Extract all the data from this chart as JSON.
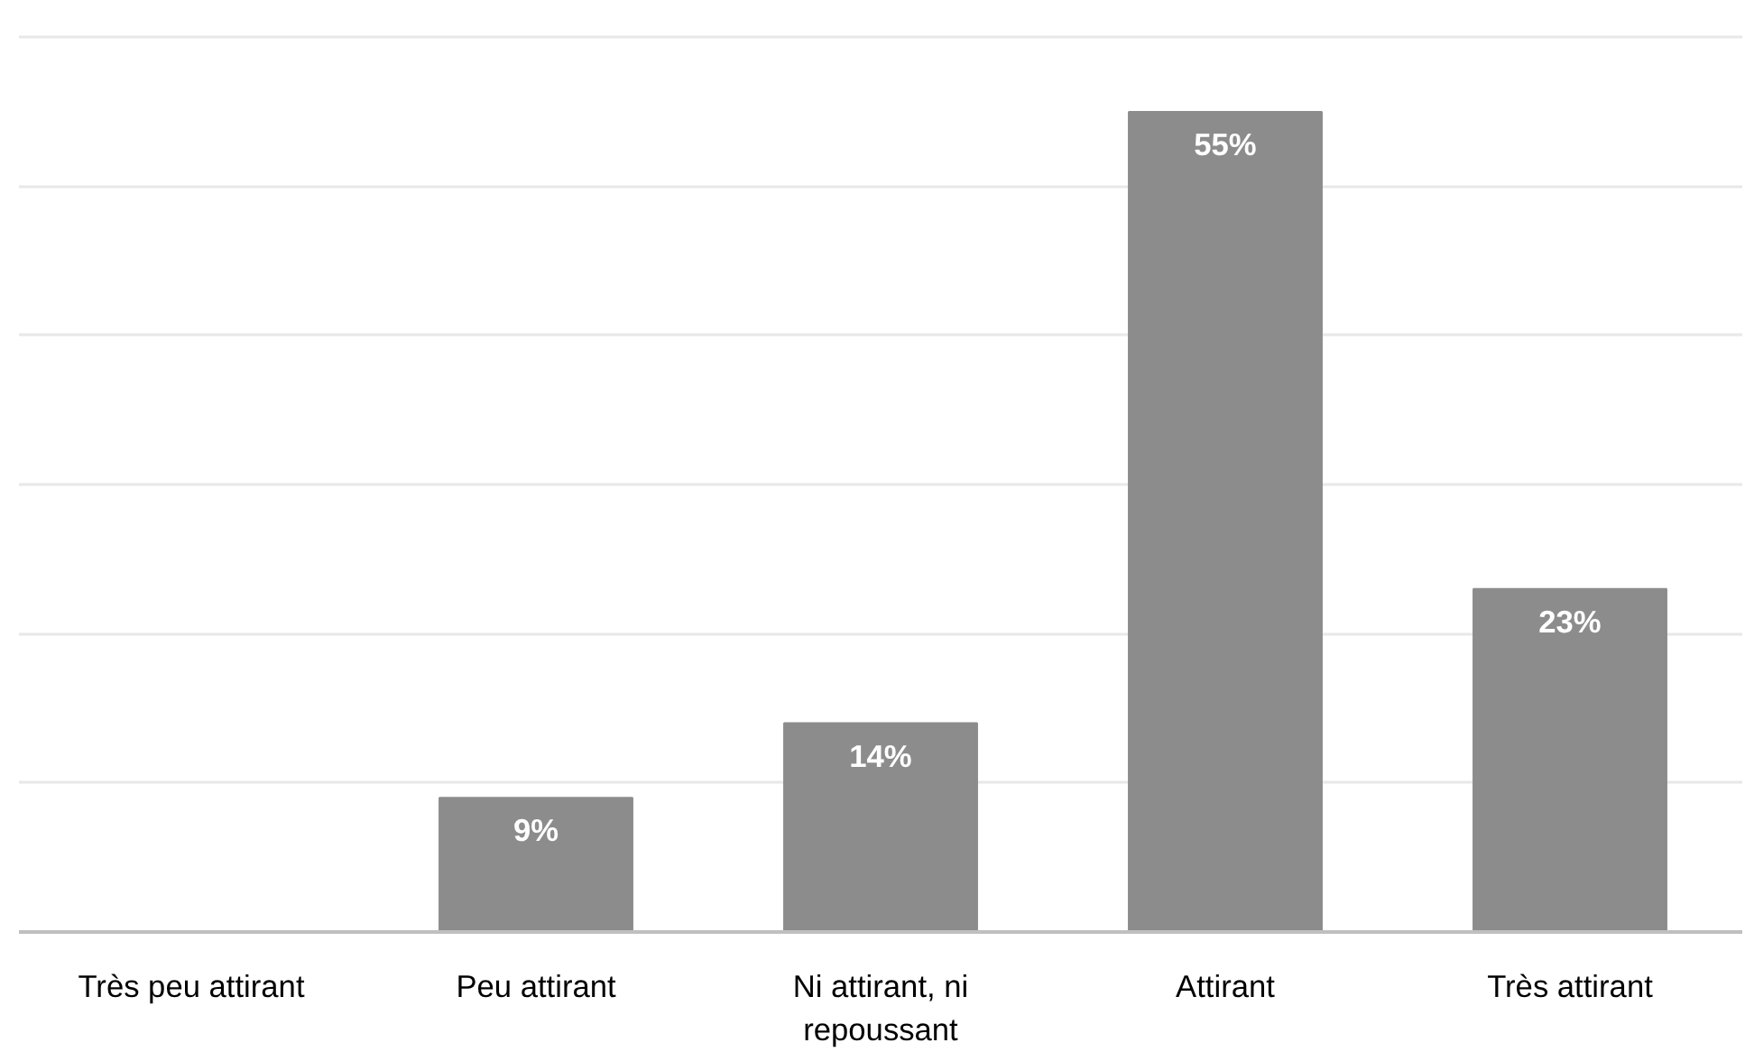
{
  "chart_data": {
    "type": "bar",
    "categories": [
      "Très peu attirant",
      "Peu attirant",
      "Ni attirant, ni repoussant",
      "Attirant",
      "Très attirant"
    ],
    "values": [
      0,
      9,
      14,
      55,
      23
    ],
    "value_labels": [
      null,
      "9%",
      "14%",
      "55%",
      "23%"
    ],
    "color": "#8c8c8c",
    "grid": "y",
    "tick_labels": "x"
  }
}
